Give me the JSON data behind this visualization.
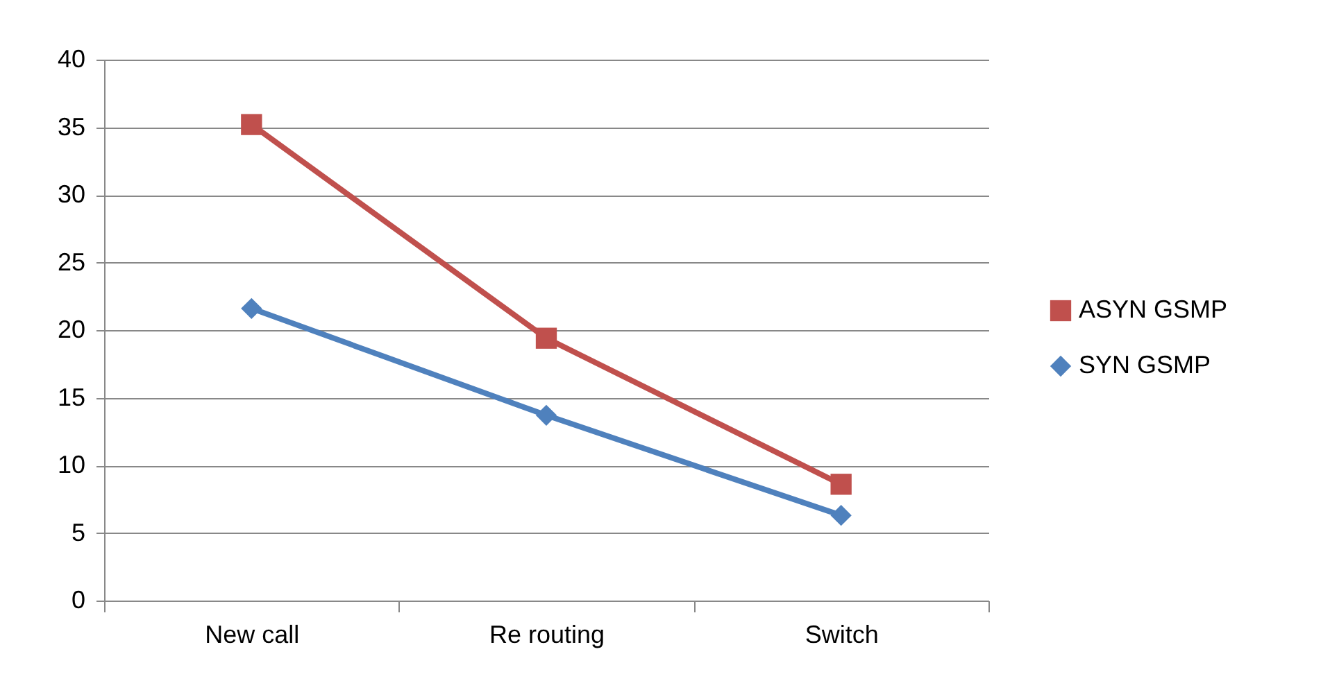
{
  "chart_data": {
    "type": "line",
    "categories": [
      "New call",
      "Re routing",
      "Switch"
    ],
    "series": [
      {
        "name": "ASYN GSMP",
        "color": "#c0504d",
        "marker": "square",
        "values": [
          35.2,
          19.4,
          8.6
        ]
      },
      {
        "name": "SYN GSMP",
        "color": "#4f81bd",
        "marker": "diamond",
        "values": [
          21.6,
          13.7,
          6.3
        ]
      }
    ],
    "ylim": [
      0,
      40
    ],
    "yticks": [
      0,
      5,
      10,
      15,
      20,
      25,
      30,
      35,
      40
    ],
    "grid": "y",
    "legend": "right",
    "line_style": "solid"
  }
}
